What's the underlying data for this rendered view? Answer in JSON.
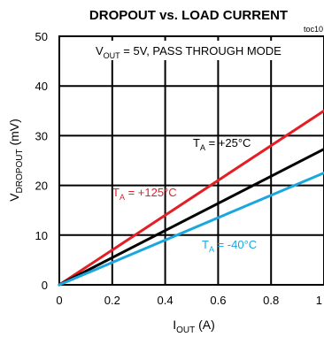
{
  "chart_data": {
    "type": "line",
    "title": "DROPOUT vs. LOAD CURRENT",
    "tag": "toc10",
    "condition": {
      "prefix": "V",
      "sub": "OUT",
      "suffix": " = 5V, PASS THROUGH MODE"
    },
    "xlabel": {
      "main": "I",
      "sub": "OUT",
      "suffix": " (A)"
    },
    "ylabel": {
      "main": "V",
      "sub": "DROPOUT",
      "suffix": " (mV)"
    },
    "xlim": [
      0,
      1
    ],
    "ylim": [
      0,
      50
    ],
    "x_ticks": [
      "0",
      "0.2",
      "0.4",
      "0.6",
      "0.8",
      "1"
    ],
    "y_ticks": [
      "0",
      "10",
      "20",
      "30",
      "40",
      "50"
    ],
    "grid": true,
    "series": [
      {
        "name": "T_A = +125°C",
        "label_main": "T",
        "label_sub": "A",
        "label_suffix": " = +125°C",
        "color": "#e31e24",
        "x": [
          0,
          1
        ],
        "y": [
          0,
          35
        ]
      },
      {
        "name": "T_A = +25°C",
        "label_main": "T",
        "label_sub": "A",
        "label_suffix": " = +25°C",
        "color": "#000000",
        "x": [
          0,
          1
        ],
        "y": [
          0,
          27.3
        ]
      },
      {
        "name": "T_A = -40°C",
        "label_main": "T",
        "label_sub": "A",
        "label_suffix": " = -40°C",
        "color": "#1aa7e0",
        "x": [
          0,
          1
        ],
        "y": [
          0,
          22.5
        ]
      }
    ]
  }
}
